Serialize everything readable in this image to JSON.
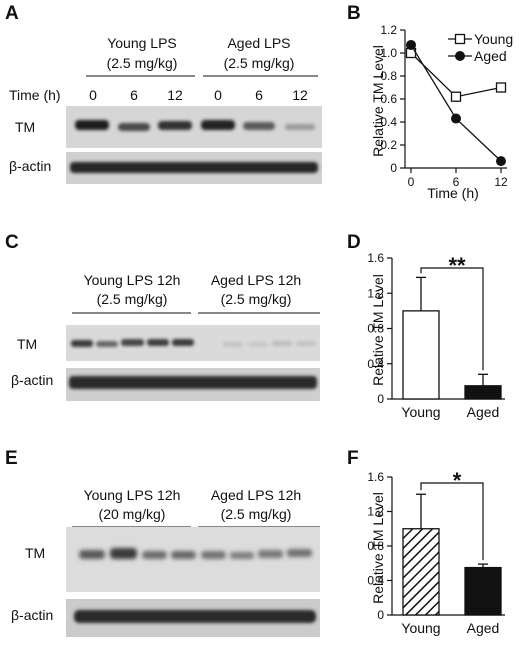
{
  "panels": {
    "A": {
      "letter": "A",
      "group1": "Young LPS",
      "group1_dose": "(2.5 mg/kg)",
      "group2": "Aged LPS",
      "group2_dose": "(2.5 mg/kg)",
      "time_label": "Time (h)",
      "time_points": [
        "0",
        "6",
        "12",
        "0",
        "6",
        "12"
      ],
      "row1": "TM",
      "row2": "β-actin"
    },
    "C": {
      "letter": "C",
      "group1": "Young LPS 12h",
      "group1_dose": "(2.5 mg/kg)",
      "group2": "Aged LPS 12h",
      "group2_dose": "(2.5 mg/kg)",
      "row1": "TM",
      "row2": "β-actin"
    },
    "E": {
      "letter": "E",
      "group1": "Young LPS 12h",
      "group1_dose": "(20 mg/kg)",
      "group2": "Aged LPS 12h",
      "group2_dose": "(2.5 mg/kg)",
      "row1": "TM",
      "row2": "β-actin"
    },
    "B": {
      "letter": "B"
    },
    "D": {
      "letter": "D",
      "significance": "**"
    },
    "F": {
      "letter": "F",
      "significance": "*"
    }
  },
  "chart_data": [
    {
      "panel": "B",
      "type": "line",
      "x": [
        0,
        6,
        12
      ],
      "xticks": [
        "0",
        "6",
        "12"
      ],
      "xlabel": "Time (h)",
      "ylabel": "Relative TM Level",
      "ylim": [
        0,
        1.2
      ],
      "yticks": [
        "0",
        "0.2",
        "0.4",
        "0.6",
        "0.8",
        "1.0",
        "1.2"
      ],
      "legend": "top-right",
      "series": [
        {
          "name": "Young",
          "marker": "open-square",
          "values": [
            1.0,
            0.62,
            0.7
          ]
        },
        {
          "name": "Aged",
          "marker": "filled-circle",
          "values": [
            1.07,
            0.43,
            0.06
          ]
        }
      ]
    },
    {
      "panel": "D",
      "type": "bar",
      "categories": [
        "Young",
        "Aged"
      ],
      "values": [
        1.0,
        0.15
      ],
      "errors": [
        0.38,
        0.13
      ],
      "fills": [
        "open",
        "black"
      ],
      "ylabel": "Relative TM Level",
      "ylim": [
        0,
        1.6
      ],
      "yticks": [
        "0",
        "0.4",
        "0.8",
        "1.2",
        "1.6"
      ]
    },
    {
      "panel": "F",
      "type": "bar",
      "categories": [
        "Young",
        "Aged"
      ],
      "values": [
        1.0,
        0.55
      ],
      "errors": [
        0.4,
        0.04
      ],
      "fills": [
        "hatched",
        "black"
      ],
      "ylabel": "Relative TM Level",
      "ylim": [
        0,
        1.6
      ],
      "yticks": [
        "0",
        "0.4",
        "0.8",
        "1.2",
        "1.6"
      ]
    }
  ]
}
